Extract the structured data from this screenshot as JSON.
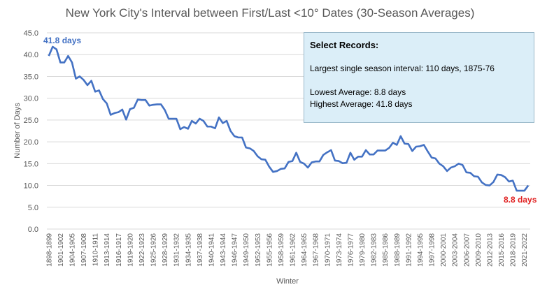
{
  "colors": {
    "series": "#4472c4",
    "max_label": "#4472c4",
    "min_label": "#e02020",
    "box_fill": "#dbeef8",
    "box_border": "#9ab8c9",
    "grid": "#d9d9d9",
    "text": "#595959"
  },
  "chart_data": {
    "type": "line",
    "title": "New York City's Interval between First/Last <10° Dates (30-Season Averages)",
    "xlabel": "Winter",
    "ylabel": "Number  of Days",
    "ylim": [
      0,
      45
    ],
    "yticks": [
      "0.0",
      "5.0",
      "10.0",
      "15.0",
      "20.0",
      "25.0",
      "30.0",
      "35.0",
      "40.0",
      "45.0"
    ],
    "ytick_values": [
      0,
      5,
      10,
      15,
      20,
      25,
      30,
      35,
      40,
      45
    ],
    "grid": true,
    "legend": false,
    "x_first_season": "1898-1899",
    "x_tick_labels": [
      "1898-1899",
      "1901-1902",
      "1904-1905",
      "1907-1908",
      "1910-1911",
      "1913-1914",
      "1916-1917",
      "1919-1920",
      "1922-1923",
      "1925-1926",
      "1928-1929",
      "1931-1932",
      "1934-1935",
      "1937-1938",
      "1940-1941",
      "1943-1944",
      "1946-1947",
      "1949-1950",
      "1952-1953",
      "1955-1956",
      "1958-1959",
      "1961-1962",
      "1964-1965",
      "1967-1968",
      "1970-1971",
      "1973-1974",
      "1976-1977",
      "1979-1980",
      "1982-1983",
      "1985-1986",
      "1988-1989",
      "1991-1992",
      "1994-1995",
      "1997-1998",
      "2000-2001",
      "2003-2004",
      "2006-2007",
      "2009-2010",
      "2012-2013",
      "2015-2016",
      "2018-2019",
      "2021-2022"
    ],
    "series": [
      {
        "values": [
          39.7,
          41.8,
          41.2,
          38.2,
          38.2,
          39.7,
          38.2,
          34.5,
          35.0,
          34.2,
          33.0,
          34.0,
          31.5,
          31.8,
          29.8,
          28.8,
          26.2,
          26.6,
          26.8,
          27.4,
          25.1,
          27.5,
          27.8,
          29.7,
          29.6,
          29.6,
          28.3,
          28.5,
          28.6,
          28.6,
          27.3,
          25.3,
          25.3,
          25.3,
          22.9,
          23.4,
          23.0,
          24.8,
          24.2,
          25.3,
          24.8,
          23.5,
          23.5,
          23.1,
          25.6,
          24.3,
          24.8,
          22.5,
          21.3,
          21.0,
          21.0,
          18.7,
          18.5,
          17.9,
          16.7,
          16.0,
          15.9,
          14.3,
          13.1,
          13.3,
          13.8,
          13.9,
          15.4,
          15.6,
          17.5,
          15.4,
          15.0,
          14.1,
          15.3,
          15.5,
          15.5,
          17.0,
          17.6,
          18.1,
          15.7,
          15.6,
          15.1,
          15.2,
          17.5,
          15.9,
          16.6,
          16.6,
          18.1,
          17.1,
          17.1,
          18.0,
          18.0,
          18.0,
          18.6,
          19.8,
          19.3,
          21.3,
          19.6,
          19.5,
          17.9,
          18.9,
          19.0,
          19.3,
          17.8,
          16.4,
          16.2,
          15.0,
          14.4,
          13.3,
          14.1,
          14.4,
          15.0,
          14.7,
          13.0,
          12.9,
          12.1,
          12.0,
          10.7,
          10.1,
          10.0,
          10.8,
          12.5,
          12.4,
          11.9,
          10.9,
          11.1,
          8.8,
          8.8,
          8.8,
          10.0
        ]
      }
    ]
  },
  "annotations": {
    "max_label": "41.8 days",
    "min_label": "8.8 days"
  },
  "records_box": {
    "title": "Select Records:",
    "line1": "Largest single season interval: 110 days, 1875-76",
    "line2": "Lowest Average: 8.8 days",
    "line3": "Highest Average: 41.8 days"
  }
}
